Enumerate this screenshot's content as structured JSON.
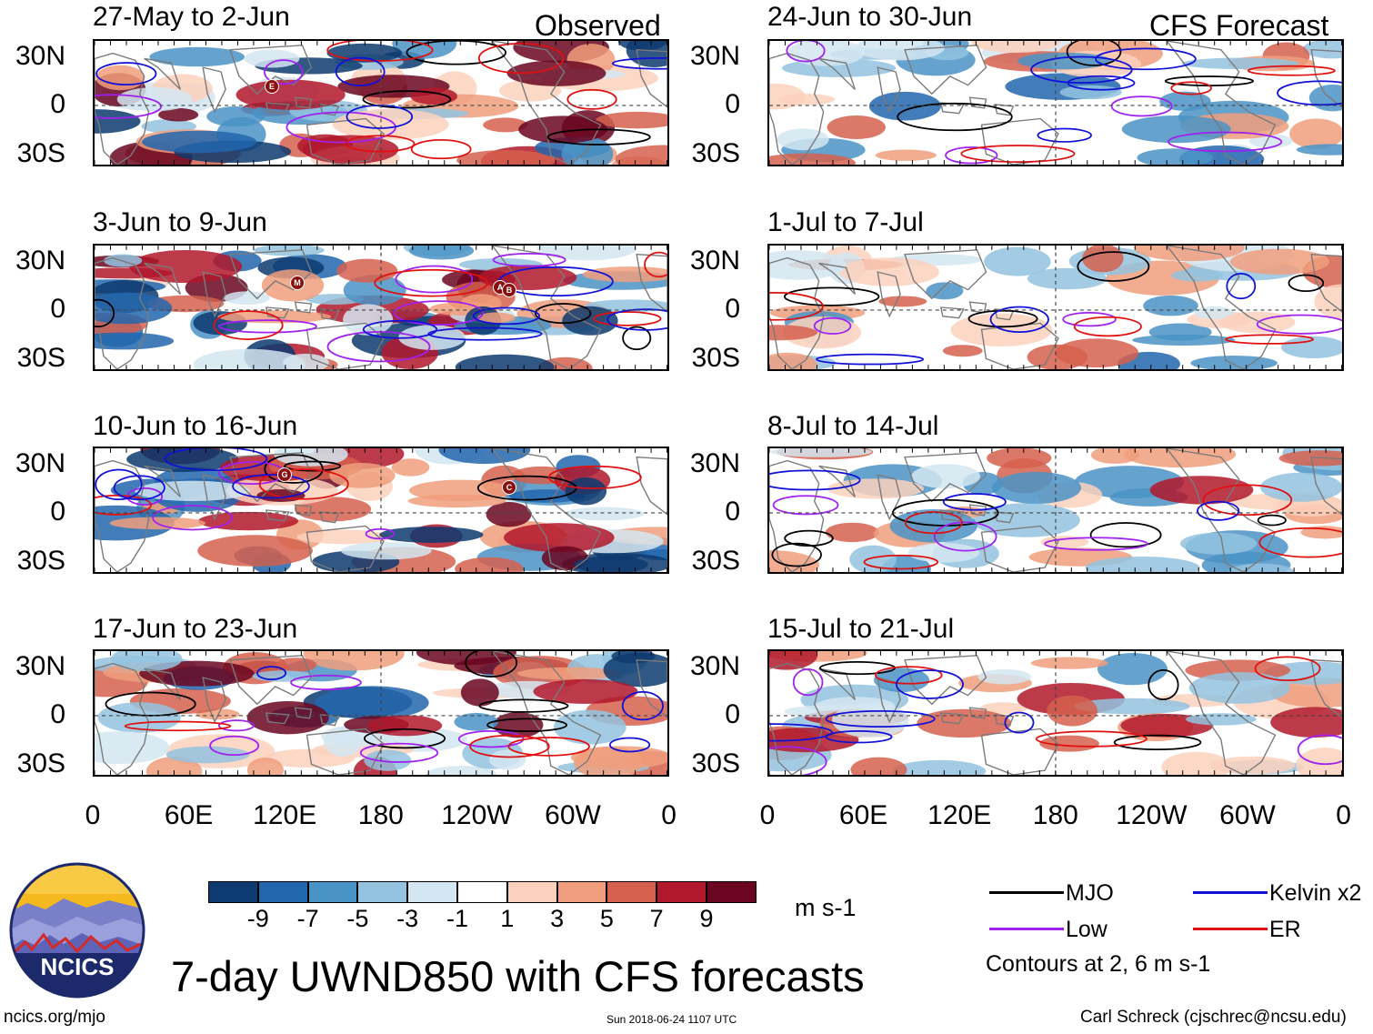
{
  "title": "7-day UWND850 with CFS forecasts",
  "column_headers": {
    "observed": "Observed",
    "forecast": "CFS Forecast"
  },
  "panels_observed": [
    {
      "label": "27-May to 2-Jun",
      "storms": [
        "E"
      ]
    },
    {
      "label": "3-Jun to 9-Jun",
      "storms": [
        "M",
        "A",
        "B"
      ]
    },
    {
      "label": "10-Jun to 16-Jun",
      "storms": [
        "G",
        "C"
      ]
    },
    {
      "label": "17-Jun to 23-Jun",
      "storms": []
    }
  ],
  "panels_forecast": [
    {
      "label": "24-Jun to 30-Jun"
    },
    {
      "label": "1-Jul to 7-Jul"
    },
    {
      "label": "8-Jul to 14-Jul"
    },
    {
      "label": "15-Jul to 21-Jul"
    }
  ],
  "y_axis_labels": [
    "30N",
    "0",
    "30S"
  ],
  "x_axis_labels": [
    "0",
    "60E",
    "120E",
    "180",
    "120W",
    "60W",
    "0"
  ],
  "colorbar": {
    "ticks": [
      "-9",
      "-7",
      "-5",
      "-3",
      "-1",
      "1",
      "3",
      "5",
      "7",
      "9"
    ],
    "units": "m s-1",
    "colors": [
      "#0d3a70",
      "#2266ad",
      "#4a93c6",
      "#93c3df",
      "#d3e6f1",
      "#ffffff",
      "#fbd1bd",
      "#f09e7d",
      "#d5604d",
      "#b2182b",
      "#6a0620"
    ]
  },
  "legend": {
    "items": [
      {
        "name": "MJO",
        "color": "#000000"
      },
      {
        "name": "Kelvin x2",
        "color": "#1010d8"
      },
      {
        "name": "Low",
        "color": "#a020f0"
      },
      {
        "name": "ER",
        "color": "#e01010"
      }
    ],
    "note": "Contours at 2, 6 m s-1"
  },
  "logo_text": "NCICS",
  "footer": {
    "left": "ncics.org/mjo",
    "center": "Sun 2018-06-24 1107 UTC",
    "right": "Carl Schreck (cjschrec@ncsu.edu)"
  }
}
